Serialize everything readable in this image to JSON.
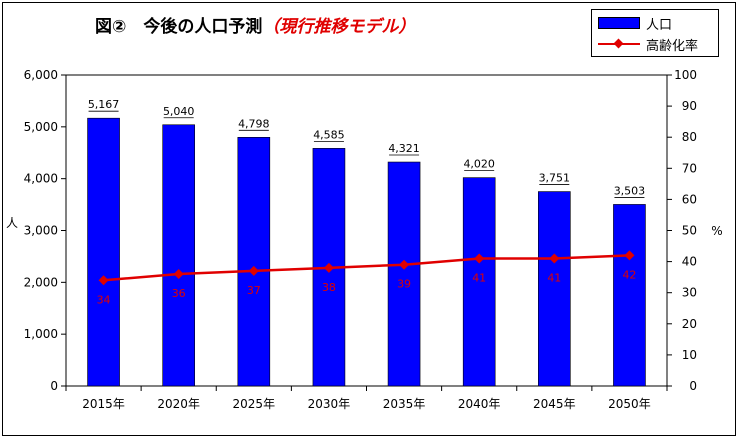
{
  "chart_data": {
    "type": "bar",
    "title": "図②　今後の人口予測",
    "subtitle": "（現行推移モデル）",
    "categories": [
      "2015年",
      "2020年",
      "2025年",
      "2030年",
      "2035年",
      "2040年",
      "2045年",
      "2050年"
    ],
    "series": [
      {
        "name": "人口",
        "type": "bar",
        "axis": "left",
        "color": "#0000ff",
        "values": [
          5167,
          5040,
          4798,
          4585,
          4321,
          4020,
          3751,
          3503
        ],
        "labels": [
          "5,167",
          "5,040",
          "4,798",
          "4,585",
          "4,321",
          "4,020",
          "3,751",
          "3,503"
        ]
      },
      {
        "name": "高齢化率",
        "type": "line",
        "axis": "right",
        "color": "#e00000",
        "marker": "diamond",
        "values": [
          34,
          36,
          37,
          38,
          39,
          41,
          41,
          42
        ],
        "labels": [
          "34",
          "36",
          "37",
          "38",
          "39",
          "41",
          "41",
          "42"
        ]
      }
    ],
    "y_left": {
      "label": "人",
      "min": 0,
      "max": 6000,
      "ticks": [
        0,
        1000,
        2000,
        3000,
        4000,
        5000,
        6000
      ],
      "tick_labels": [
        "0",
        "1,000",
        "2,000",
        "3,000",
        "4,000",
        "5,000",
        "6,000"
      ]
    },
    "y_right": {
      "label": "%",
      "min": 0,
      "max": 100,
      "ticks": [
        0,
        10,
        20,
        30,
        40,
        50,
        60,
        70,
        80,
        90,
        100
      ],
      "tick_labels": [
        "0",
        "10",
        "20",
        "30",
        "40",
        "50",
        "60",
        "70",
        "80",
        "90",
        "100"
      ]
    },
    "grid": false,
    "legend": "top-right"
  }
}
